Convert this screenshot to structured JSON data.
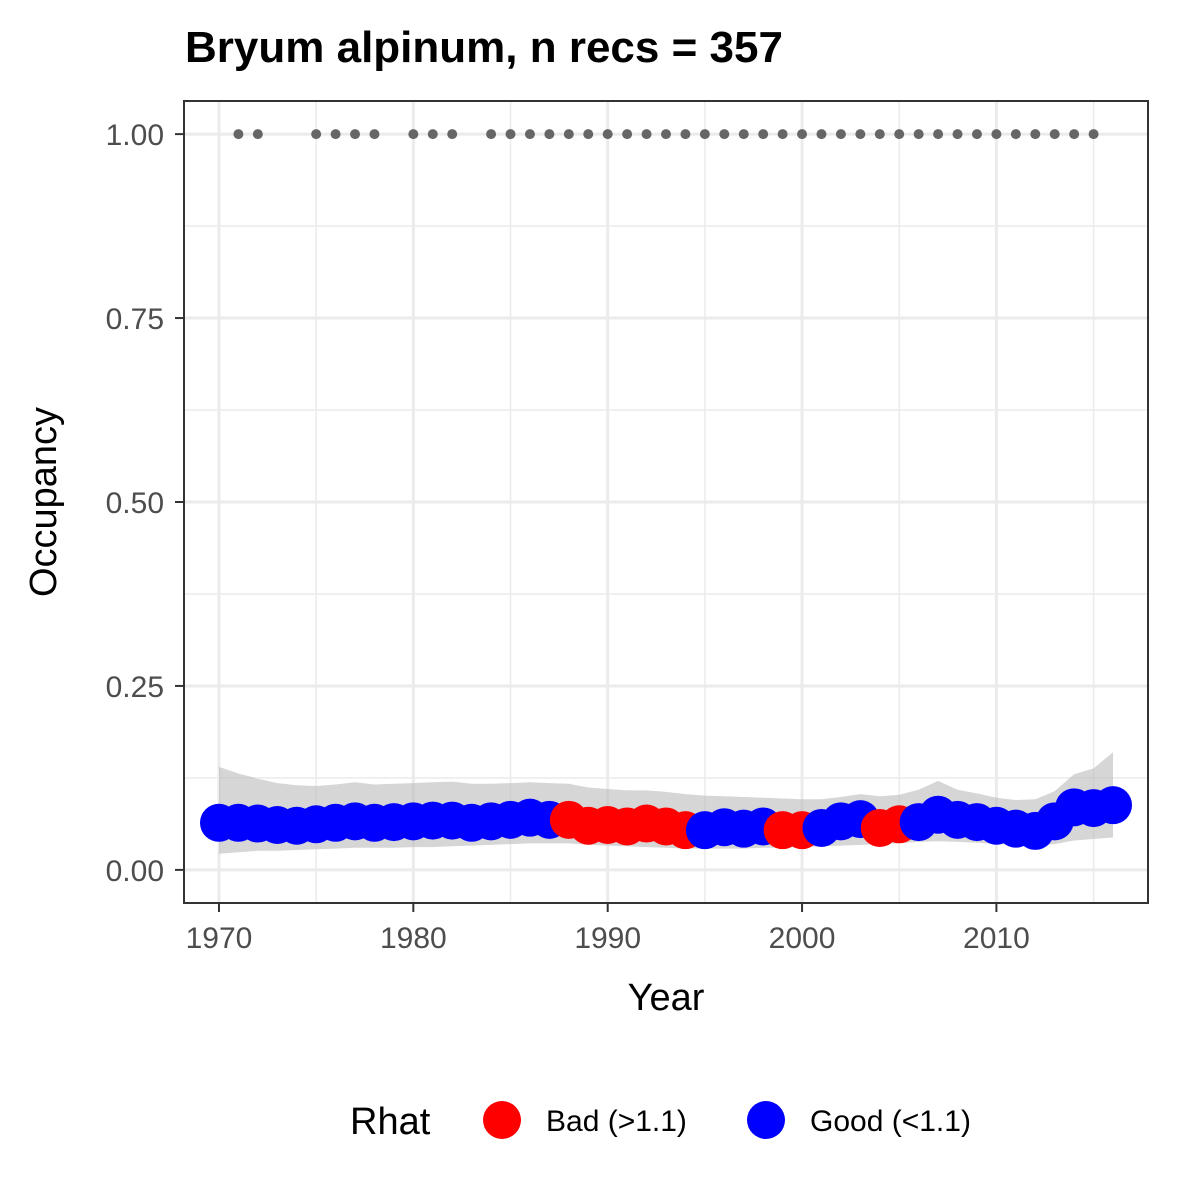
{
  "chart_data": {
    "type": "scatter",
    "title": "Bryum alpinum, n recs = 357",
    "xlabel": "Year",
    "ylabel": "Occupancy",
    "xlim": [
      1968.2,
      2017.8
    ],
    "ylim": [
      -0.045,
      1.045
    ],
    "x_ticks": [
      1970,
      1980,
      1990,
      2000,
      2010
    ],
    "x_tick_labels": [
      "1970",
      "1980",
      "1990",
      "2000",
      "2010"
    ],
    "y_ticks": [
      0,
      0.25,
      0.5,
      0.75,
      1.0
    ],
    "y_tick_labels": [
      "0.00",
      "0.25",
      "0.50",
      "0.75",
      "1.00"
    ],
    "grid": true,
    "legend": {
      "title": "Rhat",
      "position": "bottom",
      "entries": [
        {
          "label": "Bad (>1.1)",
          "color": "#ff0000"
        },
        {
          "label": "Good (<1.1)",
          "color": "#0000ff"
        }
      ]
    },
    "series": [
      {
        "name": "Occupancy",
        "x": [
          1970,
          1971,
          1972,
          1973,
          1974,
          1975,
          1976,
          1977,
          1978,
          1979,
          1980,
          1981,
          1982,
          1983,
          1984,
          1985,
          1986,
          1987,
          1988,
          1989,
          1990,
          1991,
          1992,
          1993,
          1994,
          1995,
          1996,
          1997,
          1998,
          1999,
          2000,
          2001,
          2002,
          2003,
          2004,
          2005,
          2006,
          2007,
          2008,
          2009,
          2010,
          2011,
          2012,
          2013,
          2014,
          2015,
          2016
        ],
        "y": [
          0.064,
          0.064,
          0.063,
          0.061,
          0.06,
          0.062,
          0.064,
          0.066,
          0.064,
          0.065,
          0.066,
          0.067,
          0.067,
          0.064,
          0.066,
          0.068,
          0.071,
          0.068,
          0.068,
          0.06,
          0.061,
          0.059,
          0.063,
          0.059,
          0.054,
          0.054,
          0.058,
          0.056,
          0.059,
          0.054,
          0.054,
          0.057,
          0.066,
          0.069,
          0.057,
          0.062,
          0.065,
          0.075,
          0.068,
          0.065,
          0.06,
          0.056,
          0.053,
          0.066,
          0.085,
          0.084,
          0.088
        ],
        "rhat": [
          "Good",
          "Good",
          "Good",
          "Good",
          "Good",
          "Good",
          "Good",
          "Good",
          "Good",
          "Good",
          "Good",
          "Good",
          "Good",
          "Good",
          "Good",
          "Good",
          "Good",
          "Good",
          "Bad",
          "Bad",
          "Bad",
          "Bad",
          "Bad",
          "Bad",
          "Bad",
          "Good",
          "Good",
          "Good",
          "Good",
          "Bad",
          "Bad",
          "Good",
          "Good",
          "Good",
          "Bad",
          "Bad",
          "Good",
          "Good",
          "Good",
          "Good",
          "Good",
          "Good",
          "Good",
          "Good",
          "Good",
          "Good",
          "Good"
        ],
        "lower": [
          0.022,
          0.024,
          0.026,
          0.026,
          0.027,
          0.028,
          0.029,
          0.03,
          0.03,
          0.03,
          0.031,
          0.031,
          0.032,
          0.033,
          0.034,
          0.035,
          0.036,
          0.036,
          0.036,
          0.034,
          0.033,
          0.032,
          0.031,
          0.03,
          0.029,
          0.029,
          0.029,
          0.029,
          0.03,
          0.03,
          0.031,
          0.032,
          0.033,
          0.034,
          0.035,
          0.036,
          0.038,
          0.039,
          0.038,
          0.037,
          0.035,
          0.034,
          0.033,
          0.035,
          0.04,
          0.042,
          0.044
        ],
        "upper": [
          0.14,
          0.131,
          0.124,
          0.118,
          0.115,
          0.114,
          0.116,
          0.119,
          0.116,
          0.117,
          0.118,
          0.119,
          0.12,
          0.117,
          0.117,
          0.118,
          0.119,
          0.118,
          0.117,
          0.112,
          0.11,
          0.108,
          0.108,
          0.106,
          0.103,
          0.101,
          0.1,
          0.099,
          0.098,
          0.097,
          0.096,
          0.096,
          0.099,
          0.103,
          0.1,
          0.102,
          0.109,
          0.121,
          0.109,
          0.104,
          0.098,
          0.095,
          0.096,
          0.107,
          0.13,
          0.138,
          0.16
        ]
      }
    ],
    "recording_years": {
      "y": 1.0,
      "color": "#666666",
      "x": [
        1971,
        1972,
        1975,
        1976,
        1977,
        1978,
        1980,
        1981,
        1982,
        1984,
        1985,
        1986,
        1987,
        1988,
        1989,
        1990,
        1991,
        1992,
        1993,
        1994,
        1995,
        1996,
        1997,
        1998,
        1999,
        2000,
        2001,
        2002,
        2003,
        2004,
        2005,
        2006,
        2007,
        2008,
        2009,
        2010,
        2011,
        2012,
        2013,
        2014,
        2015
      ]
    },
    "colors": {
      "ci_band": "#bdbdbd",
      "grid": "#ebebeb",
      "panel_border": "#333333"
    }
  }
}
